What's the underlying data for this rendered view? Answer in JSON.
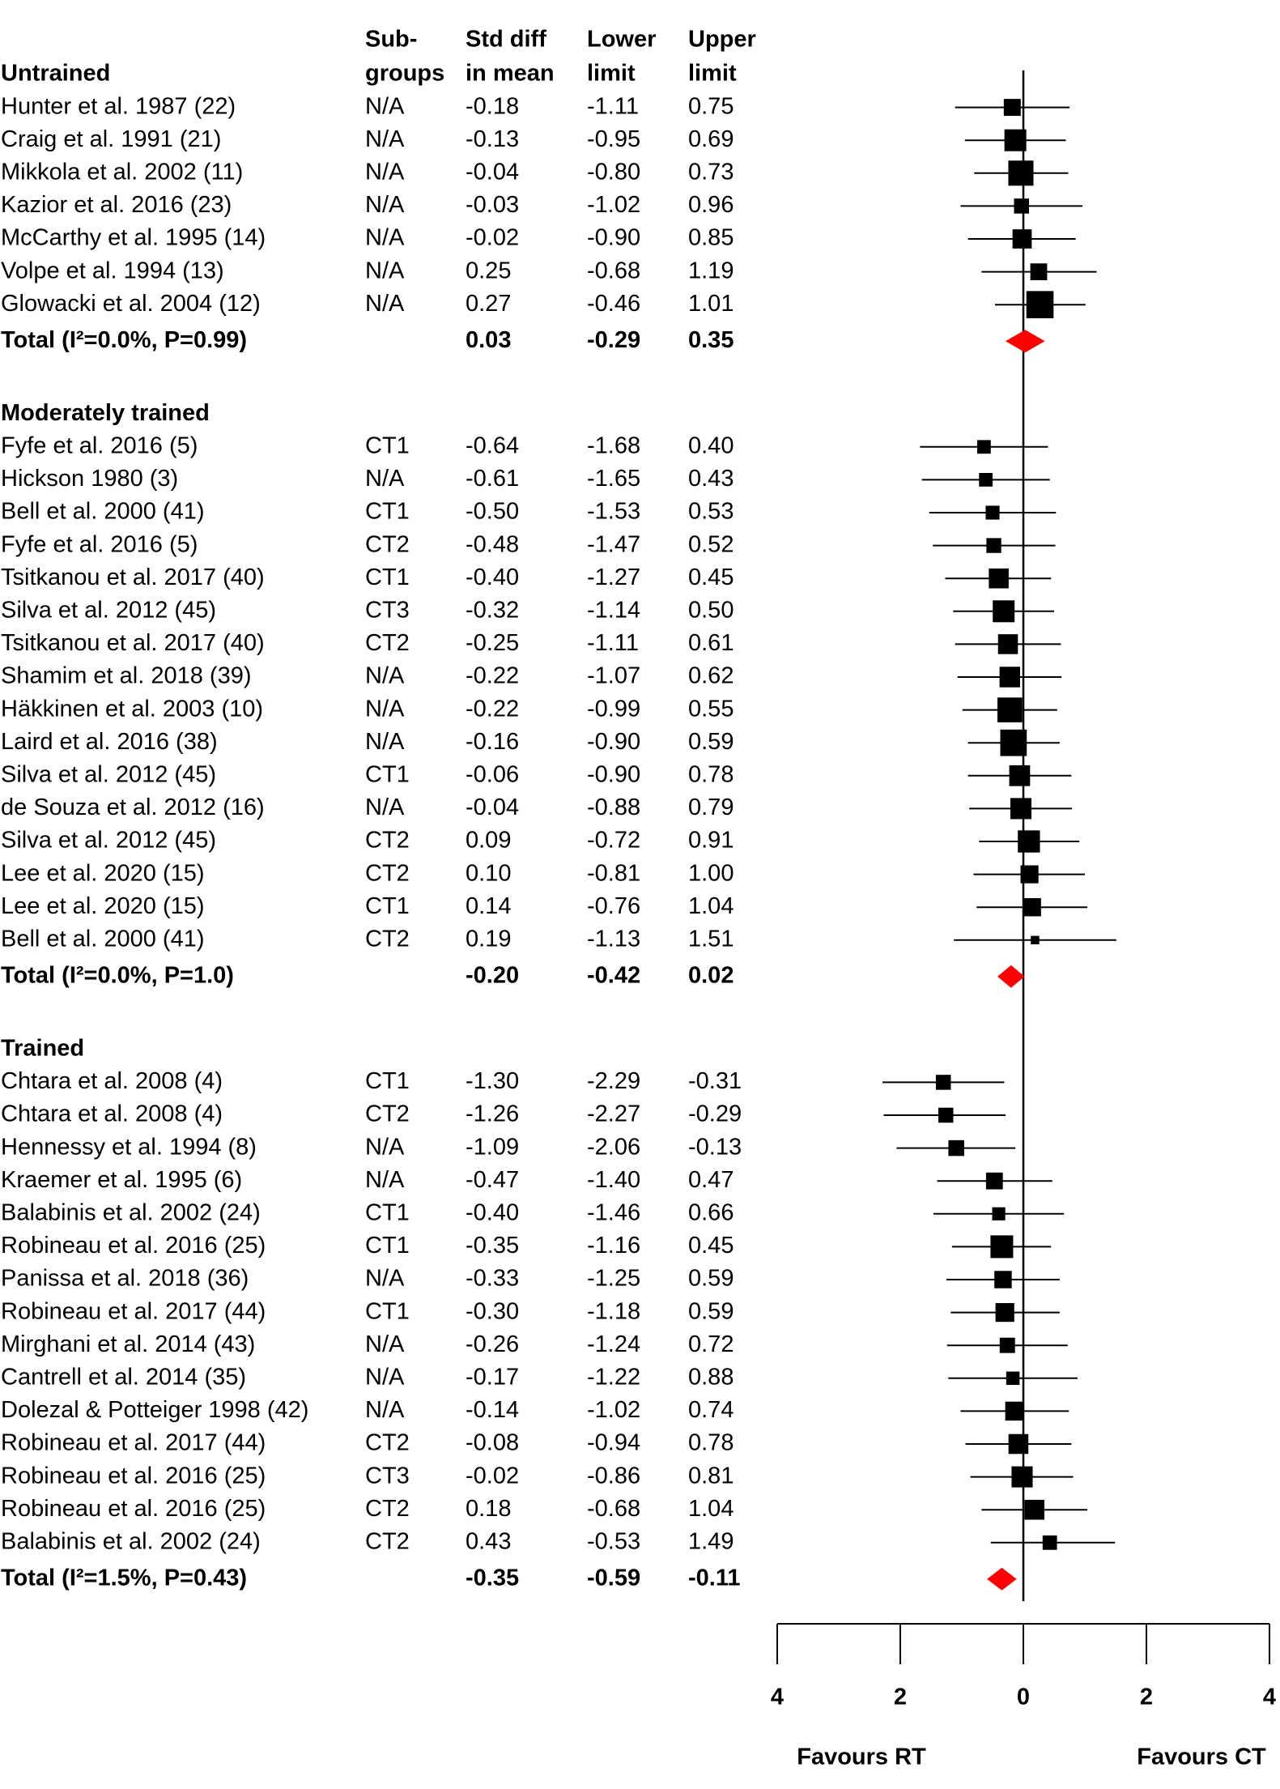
{
  "chart_data": {
    "type": "forest",
    "columns": [
      [
        "Sub-",
        "groups"
      ],
      [
        "Std diff",
        "in mean"
      ],
      [
        "Lower",
        "limit"
      ],
      [
        "Upper",
        "limit"
      ]
    ],
    "groups": [
      {
        "name": "Untrained",
        "studies": [
          {
            "label": "Hunter et al. 1987 (22)",
            "subgroup": "N/A",
            "values": [
              -0.18,
              -1.11,
              0.75
            ],
            "value_labels": [
              "-0.18",
              "-1.11",
              "0.75"
            ]
          },
          {
            "label": "Craig et al. 1991 (21)",
            "subgroup": "N/A",
            "values": [
              -0.13,
              -0.95,
              0.69
            ],
            "value_labels": [
              "-0.13",
              "-0.95",
              "0.69"
            ]
          },
          {
            "label": "Mikkola et al. 2002 (11)",
            "subgroup": "N/A",
            "values": [
              -0.04,
              -0.8,
              0.73
            ],
            "value_labels": [
              "-0.04",
              "-0.80",
              "0.73"
            ]
          },
          {
            "label": "Kazior et al. 2016 (23)",
            "subgroup": "N/A",
            "values": [
              -0.03,
              -1.02,
              0.96
            ],
            "value_labels": [
              "-0.03",
              "-1.02",
              "0.96"
            ]
          },
          {
            "label": "McCarthy et al. 1995 (14)",
            "subgroup": "N/A",
            "values": [
              -0.02,
              -0.9,
              0.85
            ],
            "value_labels": [
              "-0.02",
              "-0.90",
              "0.85"
            ]
          },
          {
            "label": "Volpe et al. 1994 (13)",
            "subgroup": "N/A",
            "values": [
              0.25,
              -0.68,
              1.19
            ],
            "value_labels": [
              "0.25",
              "-0.68",
              "1.19"
            ]
          },
          {
            "label": "Glowacki et al. 2004 (12)",
            "subgroup": "N/A",
            "values": [
              0.27,
              -0.46,
              1.01
            ],
            "value_labels": [
              "0.27",
              "-0.46",
              "1.01"
            ]
          }
        ],
        "total": {
          "label": "Total (I²=0.0%, P=0.99)",
          "values": [
            0.03,
            -0.29,
            0.35
          ],
          "value_labels": [
            "0.03",
            "-0.29",
            "0.35"
          ]
        }
      },
      {
        "name": "Moderately trained",
        "studies": [
          {
            "label": "Fyfe et al. 2016 (5)",
            "subgroup": "CT1",
            "values": [
              -0.64,
              -1.68,
              0.4
            ],
            "value_labels": [
              "-0.64",
              "-1.68",
              "0.40"
            ]
          },
          {
            "label": "Hickson 1980 (3)",
            "subgroup": "N/A",
            "values": [
              -0.61,
              -1.65,
              0.43
            ],
            "value_labels": [
              "-0.61",
              "-1.65",
              "0.43"
            ]
          },
          {
            "label": "Bell et al. 2000 (41)",
            "subgroup": "CT1",
            "values": [
              -0.5,
              -1.53,
              0.53
            ],
            "value_labels": [
              "-0.50",
              "-1.53",
              "0.53"
            ]
          },
          {
            "label": "Fyfe et al. 2016 (5)",
            "subgroup": "CT2",
            "values": [
              -0.48,
              -1.47,
              0.52
            ],
            "value_labels": [
              "-0.48",
              "-1.47",
              "0.52"
            ]
          },
          {
            "label": "Tsitkanou et al. 2017 (40)",
            "subgroup": "CT1",
            "values": [
              -0.4,
              -1.27,
              0.45
            ],
            "value_labels": [
              "-0.40",
              "-1.27",
              "0.45"
            ]
          },
          {
            "label": "Silva et al. 2012 (45)",
            "subgroup": "CT3",
            "values": [
              -0.32,
              -1.14,
              0.5
            ],
            "value_labels": [
              "-0.32",
              "-1.14",
              "0.50"
            ]
          },
          {
            "label": "Tsitkanou et al. 2017 (40)",
            "subgroup": "CT2",
            "values": [
              -0.25,
              -1.11,
              0.61
            ],
            "value_labels": [
              "-0.25",
              "-1.11",
              "0.61"
            ]
          },
          {
            "label": "Shamim et al. 2018 (39)",
            "subgroup": "N/A",
            "values": [
              -0.22,
              -1.07,
              0.62
            ],
            "value_labels": [
              "-0.22",
              "-1.07",
              "0.62"
            ]
          },
          {
            "label": "Häkkinen et al. 2003 (10)",
            "subgroup": "N/A",
            "values": [
              -0.22,
              -0.99,
              0.55
            ],
            "value_labels": [
              "-0.22",
              "-0.99",
              "0.55"
            ]
          },
          {
            "label": "Laird et al. 2016 (38)",
            "subgroup": "N/A",
            "values": [
              -0.16,
              -0.9,
              0.59
            ],
            "value_labels": [
              "-0.16",
              "-0.90",
              "0.59"
            ]
          },
          {
            "label": "Silva et al. 2012 (45)",
            "subgroup": "CT1",
            "values": [
              -0.06,
              -0.9,
              0.78
            ],
            "value_labels": [
              "-0.06",
              "-0.90",
              "0.78"
            ]
          },
          {
            "label": "de Souza et al. 2012 (16)",
            "subgroup": "N/A",
            "values": [
              -0.04,
              -0.88,
              0.79
            ],
            "value_labels": [
              "-0.04",
              "-0.88",
              "0.79"
            ]
          },
          {
            "label": "Silva et al. 2012 (45)",
            "subgroup": "CT2",
            "values": [
              0.09,
              -0.72,
              0.91
            ],
            "value_labels": [
              "0.09",
              "-0.72",
              "0.91"
            ]
          },
          {
            "label": "Lee et al. 2020 (15)",
            "subgroup": "CT2",
            "values": [
              0.1,
              -0.81,
              1.0
            ],
            "value_labels": [
              "0.10",
              "-0.81",
              "1.00"
            ]
          },
          {
            "label": "Lee et al. 2020 (15)",
            "subgroup": "CT1",
            "values": [
              0.14,
              -0.76,
              1.04
            ],
            "value_labels": [
              "0.14",
              "-0.76",
              "1.04"
            ]
          },
          {
            "label": "Bell et al. 2000 (41)",
            "subgroup": "CT2",
            "values": [
              0.19,
              -1.13,
              1.51
            ],
            "value_labels": [
              "0.19",
              "-1.13",
              "1.51"
            ]
          }
        ],
        "total": {
          "label": "Total (I²=0.0%, P=1.0)",
          "values": [
            -0.2,
            -0.42,
            0.02
          ],
          "value_labels": [
            "-0.20",
            "-0.42",
            "0.02"
          ]
        }
      },
      {
        "name": "Trained",
        "studies": [
          {
            "label": "Chtara et al. 2008 (4)",
            "subgroup": "CT1",
            "values": [
              -1.3,
              -2.29,
              -0.31
            ],
            "value_labels": [
              "-1.30",
              "-2.29",
              "-0.31"
            ]
          },
          {
            "label": "Chtara et al. 2008 (4)",
            "subgroup": "CT2",
            "values": [
              -1.26,
              -2.27,
              -0.29
            ],
            "value_labels": [
              "-1.26",
              "-2.27",
              "-0.29"
            ]
          },
          {
            "label": "Hennessy et al. 1994 (8)",
            "subgroup": "N/A",
            "values": [
              -1.09,
              -2.06,
              -0.13
            ],
            "value_labels": [
              "-1.09",
              "-2.06",
              "-0.13"
            ]
          },
          {
            "label": "Kraemer et al. 1995 (6)",
            "subgroup": "N/A",
            "values": [
              -0.47,
              -1.4,
              0.47
            ],
            "value_labels": [
              "-0.47",
              "-1.40",
              "0.47"
            ]
          },
          {
            "label": "Balabinis et al. 2002 (24)",
            "subgroup": "CT1",
            "values": [
              -0.4,
              -1.46,
              0.66
            ],
            "value_labels": [
              "-0.40",
              "-1.46",
              "0.66"
            ]
          },
          {
            "label": "Robineau et al. 2016 (25)",
            "subgroup": "CT1",
            "values": [
              -0.35,
              -1.16,
              0.45
            ],
            "value_labels": [
              "-0.35",
              "-1.16",
              "0.45"
            ]
          },
          {
            "label": "Panissa et al. 2018 (36)",
            "subgroup": "N/A",
            "values": [
              -0.33,
              -1.25,
              0.59
            ],
            "value_labels": [
              "-0.33",
              "-1.25",
              "0.59"
            ]
          },
          {
            "label": "Robineau et al. 2017 (44)",
            "subgroup": "CT1",
            "values": [
              -0.3,
              -1.18,
              0.59
            ],
            "value_labels": [
              "-0.30",
              "-1.18",
              "0.59"
            ]
          },
          {
            "label": "Mirghani et al. 2014 (43)",
            "subgroup": "N/A",
            "values": [
              -0.26,
              -1.24,
              0.72
            ],
            "value_labels": [
              "-0.26",
              "-1.24",
              "0.72"
            ]
          },
          {
            "label": "Cantrell et al. 2014 (35)",
            "subgroup": "N/A",
            "values": [
              -0.17,
              -1.22,
              0.88
            ],
            "value_labels": [
              "-0.17",
              "-1.22",
              "0.88"
            ]
          },
          {
            "label": "Dolezal & Potteiger 1998 (42)",
            "subgroup": "N/A",
            "values": [
              -0.14,
              -1.02,
              0.74
            ],
            "value_labels": [
              "-0.14",
              "-1.02",
              "0.74"
            ]
          },
          {
            "label": "Robineau et al. 2017 (44)",
            "subgroup": "CT2",
            "values": [
              -0.08,
              -0.94,
              0.78
            ],
            "value_labels": [
              "-0.08",
              "-0.94",
              "0.78"
            ]
          },
          {
            "label": "Robineau et al. 2016 (25)",
            "subgroup": "CT3",
            "values": [
              -0.02,
              -0.86,
              0.81
            ],
            "value_labels": [
              "-0.02",
              "-0.86",
              "0.81"
            ]
          },
          {
            "label": "Robineau et al. 2016 (25)",
            "subgroup": "CT2",
            "values": [
              0.18,
              -0.68,
              1.04
            ],
            "value_labels": [
              "0.18",
              "-0.68",
              "1.04"
            ]
          },
          {
            "label": "Balabinis et al. 2002 (24)",
            "subgroup": "CT2",
            "values": [
              0.43,
              -0.53,
              1.49
            ],
            "value_labels": [
              "0.43",
              "-0.53",
              "1.49"
            ]
          }
        ],
        "total": {
          "label": "Total (I²=1.5%, P=0.43)",
          "values": [
            -0.35,
            -0.59,
            -0.11
          ],
          "value_labels": [
            "-0.35",
            "-0.59",
            "-0.11"
          ]
        }
      }
    ],
    "xlim": [
      -4,
      4
    ],
    "xticks": [
      {
        "value": -4,
        "label": "4"
      },
      {
        "value": -2,
        "label": "2"
      },
      0,
      2,
      4
    ],
    "xlabels": [
      "Favours RT",
      "Favours CT"
    ],
    "marker_color": "#000000",
    "total_color": "#ff0000"
  }
}
